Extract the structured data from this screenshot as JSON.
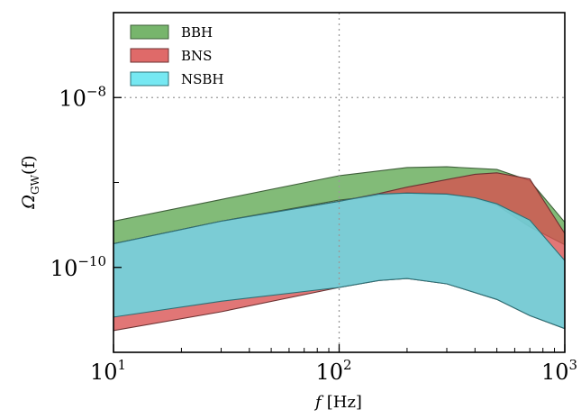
{
  "chart_data": {
    "type": "area",
    "title": "",
    "xlabel_main": "f",
    "xlabel_unit": "[Hz]",
    "ylabel_main": "Ω",
    "ylabel_sub": "GW",
    "ylabel_arg": "(f)",
    "x_scale": "log",
    "y_scale": "log",
    "xlim": [
      10,
      1000
    ],
    "ylim": [
      1e-11,
      1e-07
    ],
    "x_ticks": [
      {
        "value": 10,
        "base": "10",
        "exp": "1"
      },
      {
        "value": 100,
        "base": "10",
        "exp": "2"
      },
      {
        "value": 1000,
        "base": "10",
        "exp": "3"
      }
    ],
    "y_ticks": [
      {
        "value": 1e-08,
        "base": "10",
        "exp": "−8"
      },
      {
        "value": 1e-10,
        "base": "10",
        "exp": "−10"
      }
    ],
    "grid": {
      "x": [
        100
      ],
      "y": [
        1e-08
      ],
      "style": "dotted"
    },
    "legend_position": "top-left",
    "series": [
      {
        "name": "BBH",
        "color": "#5fa852",
        "edge": "#3f5f3a",
        "upper": [
          [
            10,
            3.5e-10
          ],
          [
            30,
            6.3e-10
          ],
          [
            100,
            1.2e-09
          ],
          [
            200,
            1.5e-09
          ],
          [
            300,
            1.53e-09
          ],
          [
            500,
            1.42e-09
          ],
          [
            700,
            1.05e-09
          ],
          [
            1000,
            3.4e-10
          ]
        ],
        "lower": [
          [
            10,
            1.9e-10
          ],
          [
            30,
            3.5e-10
          ],
          [
            100,
            6.2e-10
          ],
          [
            200,
            7.6e-10
          ],
          [
            300,
            7.4e-10
          ],
          [
            400,
            6.5e-10
          ],
          [
            500,
            5.4e-10
          ],
          [
            700,
            3e-10
          ],
          [
            1000,
            1.85e-10
          ]
        ]
      },
      {
        "name": "BNS",
        "color": "#d9504f",
        "edge": "#6b3232",
        "upper": [
          [
            10,
            1.9e-10
          ],
          [
            30,
            3.5e-10
          ],
          [
            100,
            6e-10
          ],
          [
            150,
            7.4e-10
          ],
          [
            200,
            8.8e-10
          ],
          [
            300,
            1.08e-09
          ],
          [
            400,
            1.25e-09
          ],
          [
            500,
            1.3e-09
          ],
          [
            700,
            1.1e-09
          ],
          [
            1000,
            2.5e-10
          ]
        ],
        "lower": [
          [
            10,
            1.8e-11
          ],
          [
            30,
            3e-11
          ],
          [
            100,
            5.8e-11
          ],
          [
            150,
            7e-11
          ],
          [
            200,
            7.4e-11
          ],
          [
            300,
            6.4e-11
          ],
          [
            500,
            4.2e-11
          ],
          [
            700,
            2.7e-11
          ],
          [
            1000,
            1.9e-11
          ]
        ]
      },
      {
        "name": "NSBH",
        "color": "#5ee4f0",
        "edge": "#2d6f75",
        "upper": [
          [
            10,
            1.9e-10
          ],
          [
            30,
            3.5e-10
          ],
          [
            100,
            6e-10
          ],
          [
            150,
            7.3e-10
          ],
          [
            200,
            7.5e-10
          ],
          [
            300,
            7.3e-10
          ],
          [
            400,
            6.6e-10
          ],
          [
            500,
            5.6e-10
          ],
          [
            700,
            3.6e-10
          ],
          [
            1000,
            1.2e-10
          ]
        ],
        "lower": [
          [
            10,
            2.6e-11
          ],
          [
            30,
            4e-11
          ],
          [
            100,
            5.8e-11
          ],
          [
            150,
            7e-11
          ],
          [
            200,
            7.4e-11
          ],
          [
            300,
            6.4e-11
          ],
          [
            500,
            4.2e-11
          ],
          [
            700,
            2.7e-11
          ],
          [
            1000,
            1.9e-11
          ]
        ]
      }
    ]
  }
}
